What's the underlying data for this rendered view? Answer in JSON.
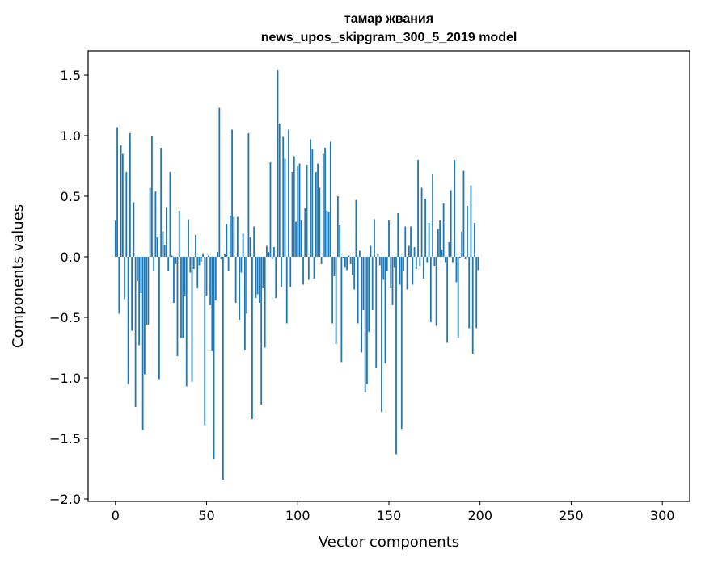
{
  "chart_data": {
    "type": "bar",
    "title": "тамар жвания",
    "subtitle": "news_upos_skipgram_300_5_2019 model",
    "xlabel": "Vector components",
    "ylabel": "Components values",
    "xlim": [
      -15,
      315
    ],
    "ylim": [
      -2.02,
      1.7
    ],
    "xticks": [
      0,
      50,
      100,
      150,
      200,
      250,
      300
    ],
    "xtick_labels": [
      "0",
      "50",
      "100",
      "150",
      "200",
      "250",
      "300"
    ],
    "yticks": [
      -2.0,
      -1.5,
      -1.0,
      -0.5,
      0.0,
      0.5,
      1.0,
      1.5
    ],
    "ytick_labels": [
      "−2.0",
      "−1.5",
      "−1.0",
      "−0.5",
      "0.0",
      "0.5",
      "1.0",
      "1.5"
    ],
    "bar_color": "#1f77b4",
    "grid": false,
    "values": [
      0.3,
      1.07,
      -0.47,
      0.92,
      0.85,
      -0.35,
      0.7,
      -1.05,
      1.02,
      -0.61,
      0.45,
      -1.24,
      -0.2,
      -0.73,
      -0.3,
      -1.43,
      -0.97,
      -0.56,
      -0.56,
      0.57,
      1.0,
      -0.12,
      0.54,
      0.16,
      -1.01,
      0.9,
      0.21,
      0.1,
      0.41,
      -0.12,
      0.7,
      0.01,
      -0.38,
      -0.06,
      -0.82,
      0.38,
      -0.67,
      -0.67,
      -0.32,
      -1.07,
      0.31,
      -0.13,
      -1.03,
      -0.1,
      0.18,
      -0.26,
      -0.07,
      -0.04,
      0.03,
      -1.39,
      -0.32,
      0.01,
      -0.4,
      -0.78,
      -1.67,
      -0.36,
      0.04,
      1.23,
      -0.02,
      -1.84,
      0.02,
      0.27,
      -0.12,
      0.34,
      1.05,
      0.33,
      -0.38,
      0.33,
      -0.52,
      -0.13,
      0.19,
      -0.77,
      -0.47,
      1.02,
      0.16,
      -1.34,
      0.25,
      -0.34,
      -0.31,
      -0.38,
      -1.22,
      -0.26,
      -0.75,
      0.09,
      0.04,
      0.78,
      -0.02,
      0.08,
      -0.34,
      1.54,
      1.1,
      -0.25,
      0.99,
      0.81,
      -0.55,
      1.05,
      -0.25,
      0.7,
      0.83,
      0.29,
      0.75,
      0.77,
      0.3,
      -0.23,
      0.4,
      0.76,
      -0.19,
      0.97,
      0.89,
      -0.18,
      0.7,
      0.77,
      0.57,
      -0.06,
      0.85,
      0.9,
      0.38,
      0.37,
      0.95,
      -0.55,
      -0.16,
      -0.72,
      0.5,
      0.26,
      -0.87,
      -0.01,
      -0.09,
      -0.11,
      0.01,
      -0.06,
      -0.15,
      -0.27,
      0.47,
      -0.55,
      0.05,
      -0.79,
      -0.44,
      -1.12,
      -1.05,
      -0.62,
      0.09,
      -0.44,
      0.31,
      -0.92,
      0.02,
      -0.07,
      -1.28,
      -0.19,
      -0.88,
      -0.12,
      0.3,
      -0.26,
      -0.4,
      -0.09,
      -1.63,
      0.36,
      -0.23,
      -1.42,
      -0.12,
      0.25,
      -0.27,
      0.09,
      0.25,
      -0.23,
      0.08,
      -0.1,
      0.8,
      -0.08,
      0.57,
      -0.18,
      0.48,
      -0.05,
      0.28,
      -0.54,
      0.68,
      -0.08,
      -0.57,
      0.23,
      0.3,
      0.06,
      0.44,
      -0.05,
      -0.71,
      0.12,
      0.55,
      -0.05,
      0.8,
      -0.21,
      -0.67,
      -0.01,
      0.21,
      0.71,
      -0.02,
      0.42,
      -0.59,
      0.59,
      -0.8,
      0.28,
      -0.59,
      -0.11
    ]
  }
}
